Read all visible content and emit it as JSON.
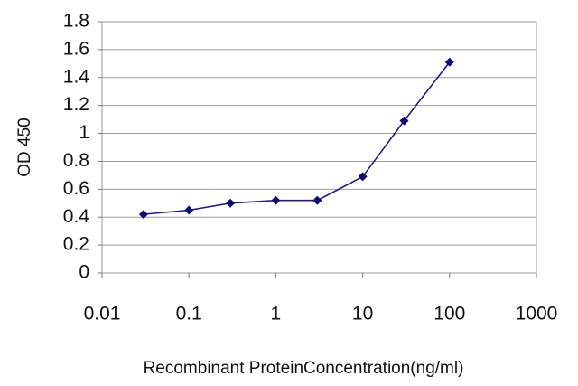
{
  "chart_data": {
    "type": "line",
    "x_label": "Recombinant ProteinConcentration(ng/ml)",
    "y_label": "OD 450",
    "x": [
      0.03,
      0.1,
      0.3,
      1,
      3,
      10,
      30,
      100
    ],
    "series": [
      {
        "color": "#1c1c8c",
        "values": [
          0.42,
          0.45,
          0.5,
          0.52,
          0.52,
          0.69,
          1.09,
          1.51
        ]
      }
    ],
    "xscale": "log",
    "xlim": [
      0.01,
      1000
    ],
    "xticks": [
      0.01,
      0.1,
      1,
      10,
      100,
      1000
    ],
    "ylim": [
      0,
      1.8
    ],
    "yticks": [
      0,
      0.2,
      0.4,
      0.6,
      0.8,
      1,
      1.2,
      1.4,
      1.6,
      1.8
    ],
    "grid": true
  }
}
